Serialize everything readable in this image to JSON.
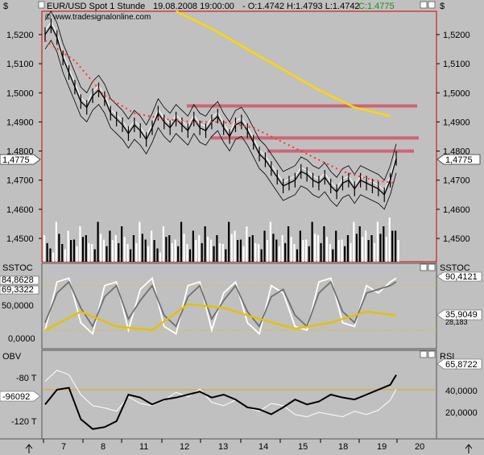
{
  "header": {
    "unit_symbol": "$",
    "symbol": "EUR/USD Spot 1 Stunde",
    "datetime": "19.08.2008 19:00:00",
    "ohlc": "- O:1.4742 H:1.4793 L:1.4742",
    "close": "C:1.4775",
    "watermark": "© www.tradesignalonline.com"
  },
  "colors": {
    "background": "#c0c0c0",
    "panel_border": "#cc0000",
    "price": "#000000",
    "bollinger": "#000000",
    "ma_red_dots": "#ff3333",
    "ma_yellow": "#ffd700",
    "resistance": "#cc6677",
    "stoch_fast": "#ffffff",
    "stoch_slow": "#707070",
    "stoch_yellow": "#e6c000",
    "obv": "#000000",
    "rsi": "#ffffff",
    "obv_level": "#e6a020"
  },
  "price_panel": {
    "ylim": [
      1.442,
      1.528
    ],
    "y_ticks": [
      "1,5200",
      "1,5100",
      "1,5000",
      "1,4900",
      "1,4800",
      "1,4700",
      "1,4600",
      "1,4500"
    ],
    "current_value_label": "1,4775",
    "current_value": 1.4775
  },
  "stoch_panel": {
    "title": "SSTOC",
    "right_title": "SSTOC",
    "labels_left": [
      "84,8628",
      "69,3322",
      "50,0000",
      "0,0000"
    ],
    "labels_right": [
      "90,4121",
      "35,9049",
      "28,183"
    ],
    "upper_band": 80,
    "lower_band": 20
  },
  "obv_panel": {
    "title": "OBV",
    "right_title": "RSI",
    "labels_left": [
      "-80 T",
      "-96092",
      "-120 T"
    ],
    "labels_right": [
      "65,8722",
      "40,0000",
      "20,0000"
    ],
    "level": -80
  },
  "x_axis": {
    "labels": [
      "7",
      "8",
      "11",
      "12",
      "13",
      "14",
      "15",
      "18",
      "19",
      "20"
    ]
  },
  "chart_data": [
    {
      "type": "line",
      "title": "EUR/USD Spot 1 Stunde",
      "ylim": [
        1.442,
        1.528
      ],
      "x_index_range": [
        0,
        60
      ],
      "series": [
        {
          "name": "EUR/USD",
          "x": [
            0,
            1,
            2,
            3,
            4,
            5,
            6,
            7,
            8,
            9,
            10,
            11,
            12,
            13,
            14,
            15,
            16,
            17,
            18,
            19,
            20,
            21,
            22,
            23,
            24,
            25,
            26,
            27,
            28,
            29,
            30,
            31,
            32,
            33,
            34,
            35,
            36,
            37,
            38,
            39,
            40,
            41,
            42,
            43,
            44,
            45,
            46,
            47,
            48,
            49,
            50,
            51,
            52,
            53,
            54,
            55,
            56,
            57,
            58,
            59
          ],
          "values": [
            1.52,
            1.523,
            1.519,
            1.512,
            1.507,
            1.502,
            1.497,
            1.495,
            1.499,
            1.501,
            1.498,
            1.493,
            1.491,
            1.489,
            1.486,
            1.489,
            1.487,
            1.484,
            1.488,
            1.493,
            1.49,
            1.488,
            1.491,
            1.489,
            1.487,
            1.491,
            1.488,
            1.487,
            1.49,
            1.492,
            1.488,
            1.485,
            1.489,
            1.49,
            1.487,
            1.483,
            1.479,
            1.477,
            1.474,
            1.471,
            1.468,
            1.469,
            1.47,
            1.473,
            1.472,
            1.47,
            1.469,
            1.471,
            1.468,
            1.466,
            1.469,
            1.47,
            1.467,
            1.47,
            1.469,
            1.468,
            1.467,
            1.465,
            1.47,
            1.4775
          ]
        },
        {
          "name": "MA",
          "x": [
            0,
            5,
            10,
            15,
            20,
            25,
            30,
            35,
            40,
            45,
            50,
            55,
            59
          ],
          "values": [
            1.518,
            1.511,
            1.499,
            1.493,
            1.491,
            1.49,
            1.49,
            1.488,
            1.483,
            1.478,
            1.473,
            1.47,
            1.469
          ]
        },
        {
          "name": "MA 200",
          "x": [
            22,
            28,
            34,
            40,
            46,
            52,
            58
          ],
          "values": [
            1.528,
            1.522,
            1.515,
            1.508,
            1.501,
            1.495,
            1.492
          ]
        }
      ],
      "levels": [
        1.4955,
        1.4845,
        1.48
      ],
      "volume": [
        6,
        3,
        9,
        4,
        7,
        5,
        8,
        6,
        4,
        9,
        5,
        7,
        6,
        8,
        4,
        6,
        9,
        5,
        7,
        3,
        8,
        6,
        5,
        9,
        4,
        7,
        6,
        8,
        5,
        6,
        4,
        9,
        7,
        5,
        8,
        6,
        4,
        7,
        9,
        5,
        6,
        8,
        4,
        7,
        5,
        9,
        6,
        8,
        4,
        7,
        5,
        6,
        9,
        8,
        7,
        6,
        9,
        8,
        10,
        7
      ]
    },
    {
      "type": "line",
      "title": "SSTOC",
      "ylim": [
        -5,
        110
      ],
      "series": [
        {
          "name": "SSTOC",
          "x": [
            0,
            2,
            4,
            6,
            8,
            10,
            12,
            14,
            16,
            18,
            20,
            22,
            24,
            26,
            28,
            30,
            32,
            34,
            36,
            38,
            40,
            42,
            44,
            46,
            48,
            50,
            52,
            54,
            56,
            58,
            59
          ],
          "values": [
            20,
            85,
            90,
            30,
            15,
            80,
            85,
            20,
            75,
            90,
            25,
            15,
            80,
            85,
            20,
            70,
            85,
            30,
            15,
            80,
            70,
            25,
            20,
            85,
            90,
            30,
            25,
            80,
            70,
            85,
            90
          ]
        },
        {
          "name": "SSTOC slow",
          "x": [
            0,
            2,
            4,
            6,
            8,
            10,
            12,
            14,
            16,
            18,
            20,
            22,
            24,
            26,
            28,
            30,
            32,
            34,
            36,
            38,
            40,
            42,
            44,
            46,
            48,
            50,
            52,
            54,
            56,
            58,
            59
          ],
          "values": [
            30,
            70,
            85,
            50,
            25,
            65,
            80,
            35,
            60,
            80,
            40,
            25,
            65,
            80,
            35,
            60,
            80,
            45,
            25,
            65,
            75,
            40,
            25,
            70,
            85,
            45,
            30,
            70,
            75,
            80,
            85
          ]
        },
        {
          "name": "SSTOC avg",
          "x": [
            0,
            6,
            12,
            18,
            24,
            30,
            36,
            42,
            48,
            54,
            59
          ],
          "values": [
            20,
            45,
            25,
            20,
            55,
            50,
            35,
            22,
            30,
            45,
            40
          ]
        }
      ]
    },
    {
      "type": "line",
      "title": "OBV",
      "ylim": [
        -130,
        -40
      ],
      "series": [
        {
          "name": "OBV",
          "x": [
            0,
            2,
            4,
            6,
            8,
            10,
            12,
            14,
            16,
            18,
            20,
            22,
            24,
            26,
            28,
            30,
            32,
            34,
            36,
            38,
            40,
            42,
            44,
            46,
            48,
            50,
            52,
            54,
            56,
            58,
            59
          ],
          "values": [
            -95,
            -80,
            -78,
            -110,
            -120,
            -118,
            -112,
            -85,
            -88,
            -95,
            -90,
            -88,
            -85,
            -82,
            -88,
            -85,
            -90,
            -98,
            -100,
            -105,
            -98,
            -90,
            -95,
            -92,
            -85,
            -88,
            -90,
            -85,
            -80,
            -75,
            -65
          ]
        },
        {
          "name": "RSI",
          "x": [
            0,
            2,
            4,
            6,
            8,
            10,
            12,
            14,
            16,
            18,
            20,
            22,
            24,
            26,
            28,
            30,
            32,
            34,
            36,
            38,
            40,
            42,
            44,
            46,
            48,
            50,
            52,
            54,
            56,
            58,
            59
          ],
          "values": [
            52,
            62,
            58,
            40,
            30,
            28,
            25,
            38,
            32,
            30,
            35,
            42,
            38,
            45,
            33,
            30,
            35,
            28,
            25,
            32,
            30,
            22,
            20,
            24,
            22,
            20,
            25,
            22,
            26,
            35,
            45
          ]
        }
      ],
      "level": -80
    }
  ]
}
